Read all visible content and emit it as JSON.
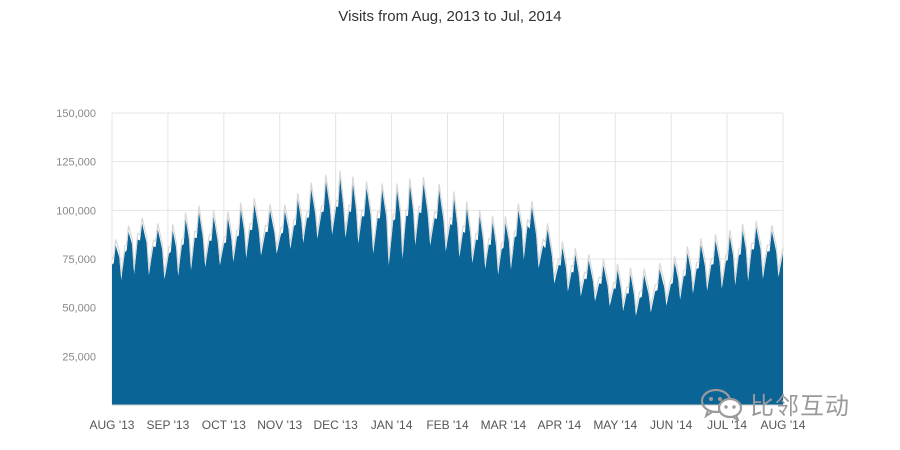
{
  "watermark": {
    "icon": "wechat-icon",
    "text": "比邻互动"
  },
  "chart_data": {
    "type": "area",
    "title": "Visits from Aug, 2013 to Jul, 2014",
    "xlabel": "",
    "ylabel": "",
    "x_range": [
      "2013-08-01",
      "2014-08-01"
    ],
    "ylim": [
      0,
      150000
    ],
    "yticks": [
      25000,
      50000,
      75000,
      100000,
      125000,
      150000
    ],
    "ytick_labels": [
      "25,000",
      "50,000",
      "75,000",
      "100,000",
      "125,000",
      "150,000"
    ],
    "xtick_labels": [
      "AUG '13",
      "SEP '13",
      "OCT '13",
      "NOV '13",
      "DEC '13",
      "JAN '14",
      "FEB '14",
      "MAR '14",
      "APR '14",
      "MAY '14",
      "JUN '14",
      "JUL '14",
      "AUG '14"
    ],
    "grid": true,
    "colors": {
      "area": "#0a6496",
      "line": "#d8d8d8",
      "grid": "#e4e4e4",
      "tick": "#888888"
    },
    "x": [
      "2013-08-01",
      "2013-08-15",
      "2013-09-01",
      "2013-09-15",
      "2013-10-01",
      "2013-10-15",
      "2013-11-01",
      "2013-11-15",
      "2013-12-01",
      "2013-12-15",
      "2014-01-01",
      "2014-01-15",
      "2014-02-01",
      "2014-02-15",
      "2014-03-01",
      "2014-03-15",
      "2014-04-01",
      "2014-04-15",
      "2014-05-01",
      "2014-05-15",
      "2014-06-01",
      "2014-06-15",
      "2014-07-01",
      "2014-07-15",
      "2014-08-01"
    ],
    "y": [
      72000,
      85000,
      78000,
      86000,
      83000,
      90000,
      88000,
      96000,
      102000,
      97000,
      95000,
      99000,
      93000,
      85000,
      80000,
      92000,
      72000,
      65000,
      60000,
      55000,
      62000,
      70000,
      74000,
      80000,
      78000
    ],
    "y_upper": [
      80000,
      94000,
      88000,
      100000,
      95000,
      104000,
      98000,
      110000,
      118000,
      112000,
      110000,
      115000,
      108000,
      98000,
      92000,
      105000,
      82000,
      75000,
      70000,
      66000,
      72000,
      82000,
      86000,
      92000,
      88000
    ],
    "y_lower": [
      62000,
      68000,
      64000,
      70000,
      72000,
      76000,
      78000,
      84000,
      88000,
      82000,
      70000,
      84000,
      78000,
      72000,
      66000,
      76000,
      60000,
      55000,
      50000,
      45000,
      52000,
      58000,
      60000,
      64000,
      66000
    ]
  }
}
